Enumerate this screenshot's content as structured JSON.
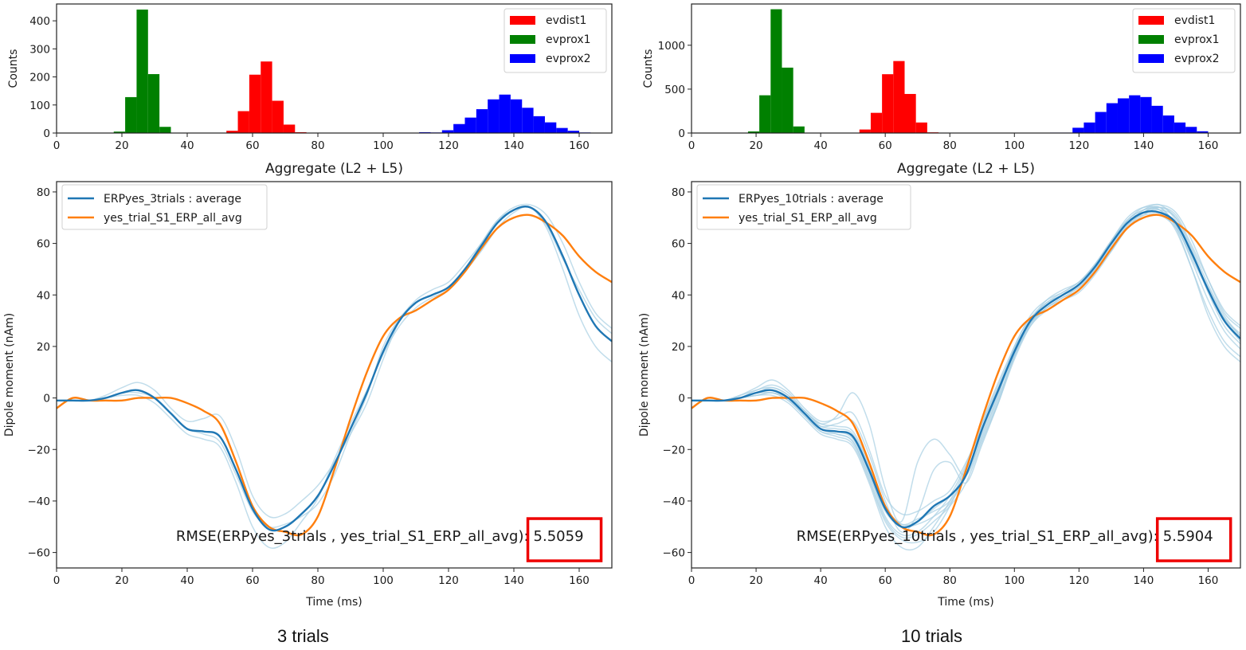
{
  "captions": [
    "3 trials",
    "10 trials"
  ],
  "colors": {
    "evdist1": "#ff0000",
    "evprox1": "#008000",
    "evprox2": "#0000ff",
    "average": "#1f77b4",
    "trial": "#a6cee3",
    "reference": "#ff7f0e",
    "highlight_box": "#ee0000"
  },
  "chart_data": [
    {
      "id": "hist-3trials",
      "type": "bar",
      "title": "",
      "xlabel": "Aggregate (L2 + L5)",
      "ylabel": "Counts",
      "xlim": [
        0,
        170
      ],
      "ylim": [
        0,
        460
      ],
      "xticks": [
        0,
        20,
        40,
        60,
        80,
        100,
        120,
        140,
        160
      ],
      "yticks": [
        0,
        100,
        200,
        300,
        400
      ],
      "legend": {
        "position": "top-right",
        "entries": [
          "evdist1",
          "evprox1",
          "evprox2"
        ]
      },
      "bin_width": 3.5,
      "series": [
        {
          "name": "evdist1",
          "color_key": "evdist1",
          "bin_starts": [
            52,
            55.5,
            59,
            62.5,
            66,
            69.5,
            73
          ],
          "values": [
            8,
            78,
            208,
            255,
            115,
            30,
            3
          ]
        },
        {
          "name": "evprox1",
          "color_key": "evprox1",
          "bin_starts": [
            17.5,
            21,
            24.5,
            28,
            31.5
          ],
          "values": [
            5,
            128,
            440,
            210,
            22
          ]
        },
        {
          "name": "evprox2",
          "color_key": "evprox2",
          "bin_starts": [
            111,
            114.5,
            118,
            121.5,
            125,
            128.5,
            132,
            135.5,
            139,
            142.5,
            146,
            149.5,
            153,
            156.5,
            160
          ],
          "values": [
            3,
            2,
            10,
            32,
            55,
            85,
            120,
            137,
            120,
            90,
            60,
            38,
            18,
            8,
            2
          ]
        }
      ]
    },
    {
      "id": "hist-10trials",
      "type": "bar",
      "title": "",
      "xlabel": "Aggregate (L2 + L5)",
      "ylabel": "Counts",
      "xlim": [
        0,
        170
      ],
      "ylim": [
        0,
        1470
      ],
      "xticks": [
        0,
        20,
        40,
        60,
        80,
        100,
        120,
        140,
        160
      ],
      "yticks": [
        0,
        500,
        1000
      ],
      "legend": {
        "position": "top-right",
        "entries": [
          "evdist1",
          "evprox1",
          "evprox2"
        ]
      },
      "bin_width": 3.5,
      "series": [
        {
          "name": "evdist1",
          "color_key": "evdist1",
          "bin_starts": [
            52,
            55.5,
            59,
            62.5,
            66,
            69.5,
            73
          ],
          "values": [
            40,
            230,
            670,
            820,
            445,
            120,
            8
          ]
        },
        {
          "name": "evprox1",
          "color_key": "evprox1",
          "bin_starts": [
            17.5,
            21,
            24.5,
            28,
            31.5
          ],
          "values": [
            18,
            430,
            1410,
            745,
            75
          ]
        },
        {
          "name": "evprox2",
          "color_key": "evprox2",
          "bin_starts": [
            111,
            114.5,
            118,
            121.5,
            125,
            128.5,
            132,
            135.5,
            139,
            142.5,
            146,
            149.5,
            153,
            156.5
          ],
          "values": [
            5,
            5,
            60,
            120,
            240,
            340,
            395,
            430,
            410,
            310,
            200,
            120,
            70,
            20
          ]
        }
      ]
    },
    {
      "id": "erp-3trials",
      "type": "line",
      "title": "",
      "xlabel": "Time (ms)",
      "ylabel": "Dipole moment (nAm)",
      "xlim": [
        0,
        170
      ],
      "ylim": [
        -66,
        84
      ],
      "xticks": [
        0,
        20,
        40,
        60,
        80,
        100,
        120,
        140,
        160
      ],
      "yticks": [
        -60,
        -40,
        -20,
        0,
        20,
        40,
        60,
        80
      ],
      "legend": {
        "position": "top-left",
        "entries": [
          "ERPyes_3trials : average",
          "yes_trial_S1_ERP_all_avg"
        ]
      },
      "annotation": {
        "prefix": "RMSE(ERPyes_3trials , yes_trial_S1_ERP_all_avg): ",
        "value": "5.5059",
        "boxed": true
      },
      "x": [
        0,
        5,
        10,
        15,
        20,
        25,
        30,
        35,
        40,
        45,
        50,
        55,
        60,
        65,
        70,
        75,
        80,
        85,
        90,
        95,
        100,
        105,
        110,
        115,
        120,
        125,
        130,
        135,
        140,
        145,
        150,
        155,
        160,
        165,
        170
      ],
      "series": [
        {
          "name": "ERPyes_3trials : average",
          "color_key": "average",
          "values": [
            -1,
            -1,
            -1,
            0,
            2,
            3,
            0,
            -6,
            -12,
            -13,
            -15,
            -28,
            -43,
            -51,
            -50,
            -45,
            -38,
            -26,
            -12,
            2,
            18,
            30,
            37,
            40,
            43,
            50,
            59,
            68,
            73,
            74,
            68,
            55,
            40,
            28,
            22
          ]
        },
        {
          "name": "yes_trial_S1_ERP_all_avg",
          "color_key": "reference",
          "values": [
            -4,
            0,
            -1,
            -1,
            -1,
            0,
            0,
            0,
            -2,
            -5,
            -10,
            -25,
            -42,
            -50,
            -52,
            -53,
            -46,
            -28,
            -8,
            10,
            24,
            31,
            34,
            38,
            42,
            49,
            58,
            66,
            70,
            71,
            68,
            63,
            55,
            49,
            45
          ]
        },
        {
          "name": "trial-1",
          "color_key": "trial",
          "values": [
            -1,
            -1,
            -1,
            1,
            4,
            6,
            3,
            -4,
            -9,
            -8,
            -7,
            -20,
            -38,
            -46,
            -45,
            -40,
            -34,
            -25,
            -14,
            -2,
            15,
            30,
            38,
            42,
            45,
            52,
            60,
            69,
            74,
            75,
            71,
            60,
            45,
            33,
            27
          ]
        },
        {
          "name": "trial-2",
          "color_key": "trial",
          "values": [
            -1,
            -1,
            -1,
            0,
            1,
            1,
            -2,
            -8,
            -14,
            -16,
            -19,
            -33,
            -50,
            -58,
            -56,
            -48,
            -39,
            -24,
            -10,
            3,
            17,
            28,
            35,
            39,
            42,
            49,
            57,
            66,
            72,
            74,
            66,
            50,
            32,
            20,
            14
          ]
        },
        {
          "name": "trial-3",
          "color_key": "trial",
          "values": [
            -1,
            -1,
            -1,
            0,
            2,
            2,
            0,
            -6,
            -12,
            -14,
            -17,
            -30,
            -44,
            -50,
            -49,
            -46,
            -41,
            -30,
            -14,
            1,
            20,
            31,
            37,
            40,
            43,
            50,
            60,
            69,
            73,
            74,
            67,
            54,
            42,
            31,
            25
          ]
        }
      ]
    },
    {
      "id": "erp-10trials",
      "type": "line",
      "title": "",
      "xlabel": "Time (ms)",
      "ylabel": "Dipole moment (nAm)",
      "xlim": [
        0,
        170
      ],
      "ylim": [
        -66,
        84
      ],
      "xticks": [
        0,
        20,
        40,
        60,
        80,
        100,
        120,
        140,
        160
      ],
      "yticks": [
        -60,
        -40,
        -20,
        0,
        20,
        40,
        60,
        80
      ],
      "legend": {
        "position": "top-left",
        "entries": [
          "ERPyes_10trials : average",
          "yes_trial_S1_ERP_all_avg"
        ]
      },
      "annotation": {
        "prefix": "RMSE(ERPyes_10trials , yes_trial_S1_ERP_all_avg): ",
        "value": "5.5904",
        "boxed": true
      },
      "x": [
        0,
        5,
        10,
        15,
        20,
        25,
        30,
        35,
        40,
        45,
        50,
        55,
        60,
        65,
        70,
        75,
        80,
        85,
        90,
        95,
        100,
        105,
        110,
        115,
        120,
        125,
        130,
        135,
        140,
        145,
        150,
        155,
        160,
        165,
        170
      ],
      "series": [
        {
          "name": "ERPyes_10trials : average",
          "color_key": "average",
          "values": [
            -1,
            -1,
            -1,
            0,
            2,
            3,
            0,
            -6,
            -12,
            -13,
            -15,
            -28,
            -43,
            -50,
            -48,
            -42,
            -38,
            -30,
            -12,
            3,
            18,
            30,
            36,
            40,
            44,
            51,
            60,
            68,
            72,
            72,
            68,
            56,
            42,
            30,
            23
          ]
        },
        {
          "name": "yes_trial_S1_ERP_all_avg",
          "color_key": "reference",
          "values": [
            -4,
            0,
            -1,
            -1,
            -1,
            0,
            0,
            0,
            -2,
            -5,
            -10,
            -25,
            -42,
            -50,
            -52,
            -53,
            -46,
            -28,
            -8,
            10,
            24,
            31,
            34,
            38,
            42,
            49,
            58,
            66,
            70,
            71,
            68,
            63,
            55,
            49,
            45
          ]
        },
        {
          "name": "trial-1",
          "color_key": "trial",
          "values": [
            -1,
            -1,
            -1,
            1,
            4,
            7,
            3,
            -4,
            -9,
            -8,
            -6,
            -20,
            -38,
            -45,
            -44,
            -40,
            -36,
            -25,
            -12,
            2,
            17,
            30,
            38,
            42,
            45,
            52,
            61,
            69,
            74,
            75,
            72,
            61,
            46,
            33,
            27
          ]
        },
        {
          "name": "trial-2",
          "color_key": "trial",
          "values": [
            -1,
            -1,
            -1,
            0,
            1,
            1,
            -2,
            -8,
            -14,
            -16,
            -19,
            -33,
            -50,
            -58,
            -58,
            -50,
            -40,
            -27,
            -10,
            4,
            18,
            29,
            35,
            39,
            42,
            49,
            57,
            66,
            72,
            74,
            66,
            50,
            32,
            20,
            14
          ]
        },
        {
          "name": "trial-3",
          "color_key": "trial",
          "values": [
            -1,
            -1,
            -1,
            0,
            2,
            2,
            0,
            -6,
            -12,
            -14,
            -17,
            -30,
            -44,
            -50,
            -49,
            -46,
            -41,
            -30,
            -14,
            1,
            20,
            31,
            37,
            40,
            43,
            50,
            60,
            69,
            73,
            74,
            67,
            54,
            42,
            31,
            25
          ]
        },
        {
          "name": "trial-4",
          "color_key": "trial",
          "values": [
            -1,
            -1,
            -1,
            1,
            3,
            5,
            2,
            -5,
            -10,
            -7,
            2,
            -10,
            -35,
            -48,
            -25,
            -16,
            -22,
            -30,
            -15,
            0,
            16,
            29,
            36,
            40,
            44,
            51,
            60,
            68,
            72,
            73,
            70,
            58,
            44,
            32,
            24
          ]
        },
        {
          "name": "trial-5",
          "color_key": "trial",
          "values": [
            -1,
            -1,
            -1,
            0,
            2,
            4,
            1,
            -6,
            -11,
            -10,
            -9,
            -22,
            -40,
            -52,
            -45,
            -28,
            -25,
            -33,
            -18,
            -2,
            15,
            28,
            35,
            39,
            43,
            50,
            59,
            67,
            72,
            74,
            70,
            57,
            42,
            30,
            22
          ]
        },
        {
          "name": "trial-6",
          "color_key": "trial",
          "values": [
            -1,
            -1,
            -1,
            0,
            1,
            2,
            -1,
            -7,
            -13,
            -15,
            -18,
            -32,
            -48,
            -55,
            -56,
            -52,
            -42,
            -28,
            -10,
            5,
            19,
            30,
            36,
            40,
            44,
            51,
            61,
            70,
            74,
            73,
            65,
            50,
            34,
            22,
            16
          ]
        },
        {
          "name": "trial-7",
          "color_key": "trial",
          "values": [
            -1,
            -1,
            -1,
            0,
            2,
            3,
            0,
            -5,
            -11,
            -12,
            -14,
            -27,
            -42,
            -49,
            -47,
            -44,
            -40,
            -30,
            -16,
            -1,
            17,
            29,
            35,
            38,
            41,
            48,
            57,
            66,
            71,
            74,
            71,
            59,
            46,
            34,
            28
          ]
        },
        {
          "name": "trial-8",
          "color_key": "trial",
          "values": [
            -1,
            -1,
            -1,
            0,
            2,
            3,
            0,
            -6,
            -12,
            -13,
            -16,
            -29,
            -46,
            -53,
            -52,
            -46,
            -38,
            -26,
            -9,
            6,
            20,
            32,
            38,
            41,
            45,
            52,
            61,
            69,
            73,
            73,
            67,
            53,
            38,
            26,
            19
          ]
        },
        {
          "name": "trial-9",
          "color_key": "trial",
          "values": [
            -1,
            -1,
            -1,
            0,
            1,
            2,
            -1,
            -7,
            -13,
            -14,
            -17,
            -31,
            -47,
            -54,
            -53,
            -48,
            -42,
            -33,
            -17,
            -2,
            16,
            28,
            34,
            38,
            42,
            49,
            58,
            67,
            73,
            75,
            69,
            56,
            41,
            28,
            21
          ]
        },
        {
          "name": "trial-10",
          "color_key": "trial",
          "values": [
            -1,
            -1,
            -1,
            0,
            3,
            4,
            1,
            -5,
            -10,
            -11,
            -13,
            -26,
            -42,
            -49,
            -48,
            -43,
            -38,
            -30,
            -13,
            2,
            19,
            30,
            37,
            41,
            45,
            51,
            60,
            68,
            71,
            71,
            66,
            55,
            43,
            31,
            24
          ]
        }
      ]
    }
  ]
}
